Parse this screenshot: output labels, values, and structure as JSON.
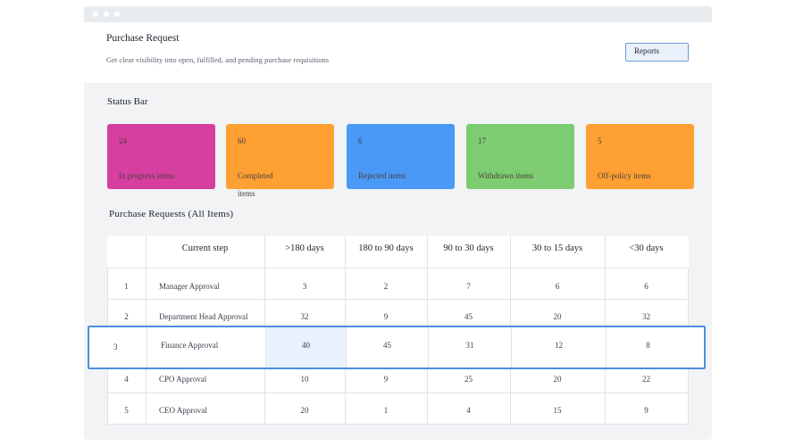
{
  "header": {
    "title": "Purchase Request",
    "subtitle": "Get clear visibility into open, fulfilled, and pending purchase requisitions",
    "reports_label": "Reports"
  },
  "status": {
    "title": "Status Bar",
    "cards": [
      {
        "count": "24",
        "label": "In progress items",
        "color": "#d63fa0"
      },
      {
        "count": "60",
        "label": "Completed items",
        "color": "#ffa033"
      },
      {
        "count": "6",
        "label": "Rejected items",
        "color": "#4a99f7"
      },
      {
        "count": "17",
        "label": "Withdrawn items",
        "color": "#7dcc72"
      },
      {
        "count": "5",
        "label": "Off-policy items",
        "color": "#ffa033"
      }
    ]
  },
  "table": {
    "title": "Purchase Requests (All Items)",
    "headers": [
      "",
      "Current step",
      ">180 days",
      "180 to 90 days",
      "90 to 30 days",
      "30 to 15 days",
      "<30 days"
    ],
    "rows": [
      {
        "num": "1",
        "step": "Manager Approval",
        "values": [
          "3",
          "2",
          "7",
          "6",
          "6"
        ]
      },
      {
        "num": "2",
        "step": "Department Head Approval",
        "values": [
          "32",
          "9",
          "45",
          "20",
          "32"
        ]
      },
      {
        "num": "3",
        "step": "Finance Approval",
        "values": [
          "40",
          "45",
          "31",
          "12",
          "8"
        ]
      },
      {
        "num": "4",
        "step": "CPO Approval",
        "values": [
          "10",
          "9",
          "25",
          "20",
          "22"
        ]
      },
      {
        "num": "5",
        "step": "CEO Approval",
        "values": [
          "20",
          "1",
          "4",
          "15",
          "9"
        ]
      }
    ],
    "selected_row_index": 2
  }
}
